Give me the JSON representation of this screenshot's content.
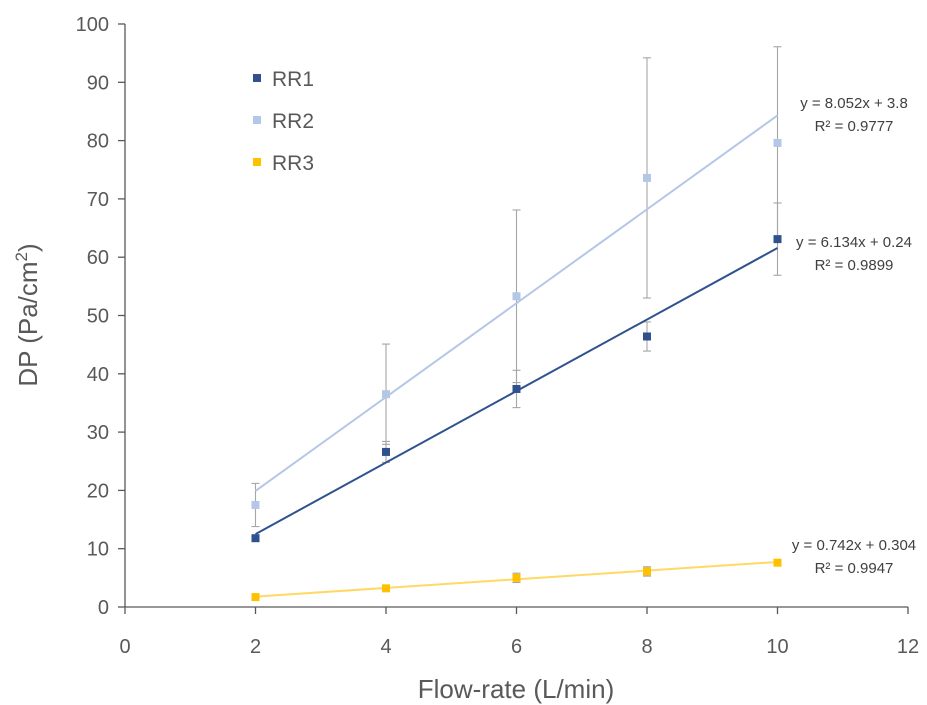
{
  "chart_data": {
    "type": "scatter",
    "title": "",
    "xlabel": "Flow-rate (L/min)",
    "ylabel_main": "DP (Pa/cm",
    "ylabel_sup": "2",
    "ylabel_close": ")",
    "xlim": [
      0,
      12
    ],
    "ylim": [
      0,
      100
    ],
    "xticks": [
      0,
      2,
      4,
      6,
      8,
      10,
      12
    ],
    "yticks": [
      0,
      10,
      20,
      30,
      40,
      50,
      60,
      70,
      80,
      90,
      100
    ],
    "grid": false,
    "legend_position": "top-left",
    "series": [
      {
        "name": "RR1",
        "color": "#2F528F",
        "x": [
          2,
          4,
          6,
          8,
          10
        ],
        "y": [
          11.8,
          26.6,
          37.4,
          46.4,
          63.1
        ],
        "error": [
          0.5,
          1.8,
          3.2,
          2.5,
          6.2
        ],
        "trend": {
          "slope": 6.134,
          "intercept": 0.24
        },
        "equation": "y = 6.134x + 0.24",
        "r2": "R² = 0.9899"
      },
      {
        "name": "RR2",
        "color": "#B4C7E7",
        "x": [
          2,
          4,
          6,
          8,
          10
        ],
        "y": [
          17.5,
          36.5,
          53.3,
          73.6,
          79.6
        ],
        "error": [
          3.7,
          8.6,
          14.8,
          20.6,
          16.5
        ],
        "trend": {
          "slope": 8.052,
          "intercept": 3.8
        },
        "equation": "y = 8.052x + 3.8",
        "r2": "R² = 0.9777"
      },
      {
        "name": "RR3",
        "color": "#FFC000",
        "x": [
          2,
          4,
          6,
          8,
          10
        ],
        "y": [
          1.7,
          3.2,
          5.0,
          6.1,
          7.6
        ],
        "error": [
          0.3,
          0.3,
          0.8,
          0.8,
          0.3
        ],
        "trend": {
          "slope": 0.742,
          "intercept": 0.304
        },
        "equation": "y = 0.742x + 0.304",
        "r2": "R² = 0.9947"
      }
    ]
  },
  "colors": {
    "axis": "#595959",
    "error_bar": "#A6A6A6",
    "trend_rr1": "#2F528F",
    "trend_rr2": "#B4C7E7",
    "trend_rr3": "#FFD966"
  }
}
